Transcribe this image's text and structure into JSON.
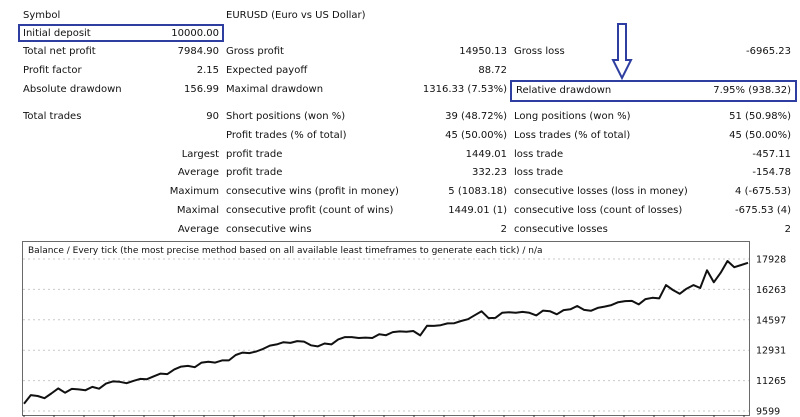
{
  "report": {
    "symbol_label": "Symbol",
    "symbol_value": "EURUSD (Euro vs US Dollar)",
    "initial_deposit_label": "Initial deposit",
    "initial_deposit_value": "10000.00",
    "total_net_profit_label": "Total net profit",
    "total_net_profit_value": "7984.90",
    "gross_profit_label": "Gross profit",
    "gross_profit_value": "14950.13",
    "gross_loss_label": "Gross loss",
    "gross_loss_value": "-6965.23",
    "profit_factor_label": "Profit factor",
    "profit_factor_value": "2.15",
    "expected_payoff_label": "Expected payoff",
    "expected_payoff_value": "88.72",
    "absolute_drawdown_label": "Absolute drawdown",
    "absolute_drawdown_value": "156.99",
    "maximal_drawdown_label": "Maximal drawdown",
    "maximal_drawdown_value": "1316.33 (7.53%)",
    "relative_drawdown_label": "Relative drawdown",
    "relative_drawdown_value": "7.95% (938.32)",
    "total_trades_label": "Total trades",
    "total_trades_value": "90",
    "short_positions_label": "Short positions (won %)",
    "short_positions_value": "39 (48.72%)",
    "long_positions_label": "Long positions (won %)",
    "long_positions_value": "51 (50.98%)",
    "profit_trades_label": "Profit trades (% of total)",
    "profit_trades_value": "45 (50.00%)",
    "loss_trades_label": "Loss trades (% of total)",
    "loss_trades_value": "45 (50.00%)",
    "largest_label": "Largest",
    "largest_profit_label": "profit trade",
    "largest_profit_value": "1449.01",
    "largest_loss_label": "loss trade",
    "largest_loss_value": "-457.11",
    "average_label": "Average",
    "average_profit_label": "profit trade",
    "average_profit_value": "332.23",
    "average_loss_label": "loss trade",
    "average_loss_value": "-154.78",
    "maximum_label": "Maximum",
    "max_cons_wins_label": "consecutive wins (profit in money)",
    "max_cons_wins_value": "5 (1083.18)",
    "max_cons_losses_label": "consecutive losses (loss in money)",
    "max_cons_losses_value": "4 (-675.53)",
    "maximal_label": "Maximal",
    "maximal_cons_profit_label": "consecutive profit (count of wins)",
    "maximal_cons_profit_value": "1449.01 (1)",
    "maximal_cons_loss_label": "consecutive loss (count of losses)",
    "maximal_cons_loss_value": "-675.53 (4)",
    "average2_label": "Average",
    "avg_cons_wins_label": "consecutive wins",
    "avg_cons_wins_value": "2",
    "avg_cons_losses_label": "consecutive losses",
    "avg_cons_losses_value": "2"
  },
  "annotation": {
    "highlight_color": "#2e3ea0",
    "arrow_icon": "down-arrow-icon"
  },
  "chart_data": {
    "type": "line",
    "title": "Balance / Every tick (the most precise method based on all available least timeframes to generate each tick) / n/a",
    "ylabel": "",
    "xlabel": "",
    "ylim": [
      9599,
      18400
    ],
    "yticks": [
      "17928",
      "16263",
      "14597",
      "12931",
      "11265",
      "9599"
    ],
    "series": [
      {
        "values": [
          10000,
          10470,
          10420,
          10300,
          10560,
          10840,
          10600,
          10810,
          10780,
          10740,
          10920,
          10820,
          11100,
          11220,
          11200,
          11120,
          11250,
          11360,
          11340,
          11500,
          11650,
          11620,
          11880,
          12030,
          12070,
          12000,
          12250,
          12300,
          12250,
          12370,
          12370,
          12670,
          12800,
          12770,
          12860,
          13000,
          13180,
          13250,
          13370,
          13330,
          13430,
          13400,
          13200,
          13140,
          13300,
          13250,
          13520,
          13650,
          13650,
          13600,
          13620,
          13600,
          13800,
          13750,
          13920,
          13960,
          13940,
          13980,
          13740,
          14270,
          14260,
          14300,
          14400,
          14410,
          14530,
          14630,
          14850,
          15060,
          14690,
          14700,
          14980,
          15010,
          14980,
          15030,
          14980,
          14840,
          15100,
          15070,
          14900,
          15130,
          15170,
          15350,
          15140,
          15090,
          15250,
          15320,
          15400,
          15560,
          15620,
          15630,
          15440,
          15730,
          15800,
          15770,
          16500,
          16230,
          16020,
          16300,
          16500,
          16340,
          17310,
          16650,
          17180,
          17820,
          17480,
          17600,
          17720
        ]
      }
    ]
  }
}
